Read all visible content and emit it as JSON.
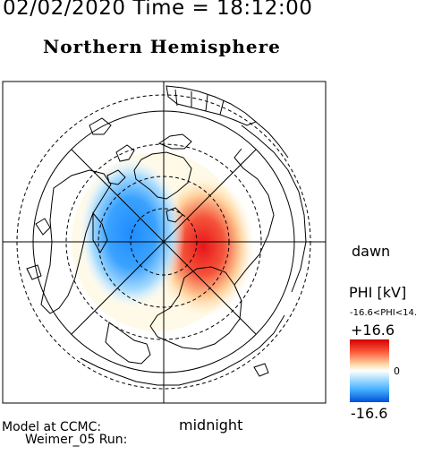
{
  "header": {
    "title": "02/02/2020 Time = 18:12:00",
    "subtitle": "Northern Hemisphere"
  },
  "map_labels": {
    "dawn": "dawn",
    "midnight": "midnight"
  },
  "footer": {
    "line1": "Model at CCMC:",
    "line2": "Weimer_05 Run:"
  },
  "legend": {
    "title": "PHI [kV]",
    "range": "-16.6<PHI<14.",
    "max": "+16.6",
    "mid": "0",
    "min": "-16.6"
  },
  "colors": {
    "positive": "#e8151a",
    "negative": "#1f8cff",
    "neutral": "#ffffff"
  }
}
